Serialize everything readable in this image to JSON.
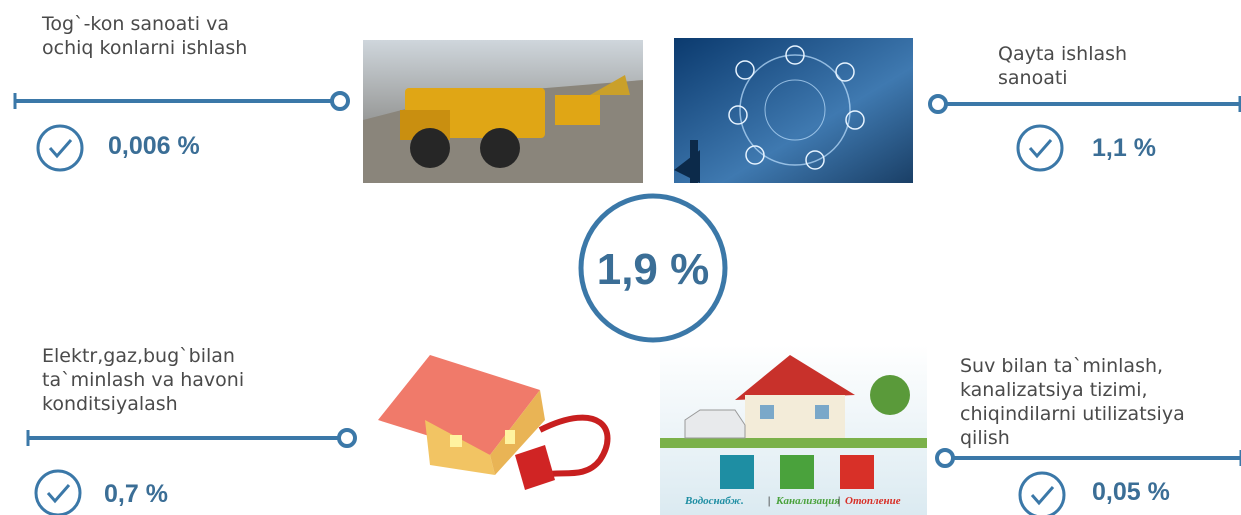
{
  "center": {
    "value": "1,9 %"
  },
  "sectors": [
    {
      "label": [
        "Tog`-kon sanoati va",
        "ochiq konlarni ishlash"
      ],
      "value": "0,006 %"
    },
    {
      "label": [
        "Qayta ishlash",
        "sanoati"
      ],
      "value": "1,1 %"
    },
    {
      "label": [
        "Elektr,gaz,bug`bilan",
        "ta`minlash va havoni",
        "konditsiyalash"
      ],
      "value": "0,7 %"
    },
    {
      "label": [
        "Suv bilan ta`minlash,",
        "kanalizatsiya tizimi,",
        "chiqindilarni utilizatsiya",
        "qilish"
      ],
      "value": "0,05 %"
    }
  ],
  "image_caption": [
    "Водоснабж.",
    "Канализация",
    "Отопление"
  ]
}
